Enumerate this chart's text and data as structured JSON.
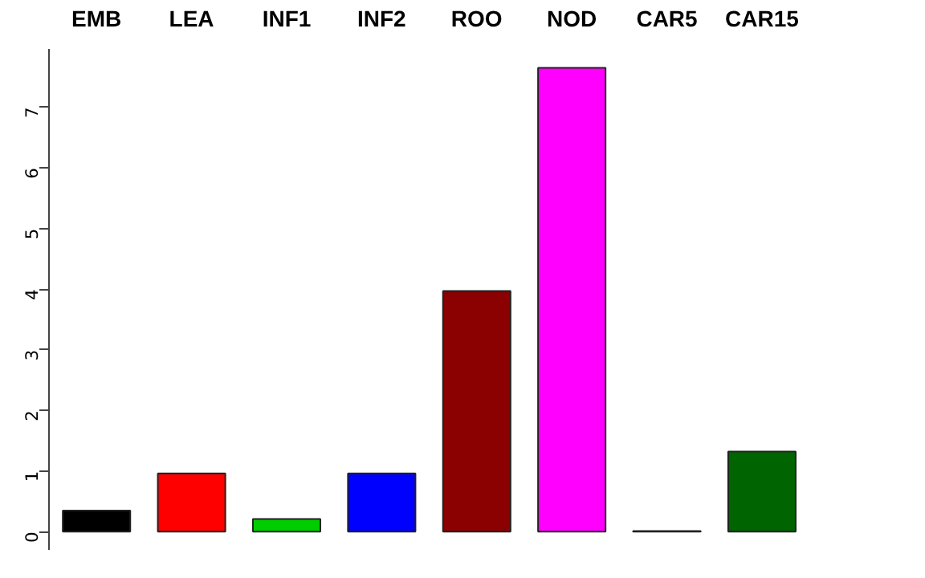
{
  "chart_data": {
    "type": "bar",
    "categories": [
      "EMB",
      "LEA",
      "INF1",
      "INF2",
      "ROO",
      "NOD",
      "CAR5",
      "CAR15"
    ],
    "values": [
      0.35,
      0.96,
      0.21,
      0.96,
      3.97,
      7.65,
      0.01,
      1.32
    ],
    "colors": [
      "#000000",
      "#ff0000",
      "#00cd00",
      "#0000ff",
      "#8b0000",
      "#ff00ff",
      "#808080",
      "#006400"
    ],
    "ylim": [
      -0.3,
      7.96
    ],
    "yticks": [
      0,
      1,
      2,
      3,
      4,
      5,
      6,
      7
    ],
    "grid": false
  }
}
